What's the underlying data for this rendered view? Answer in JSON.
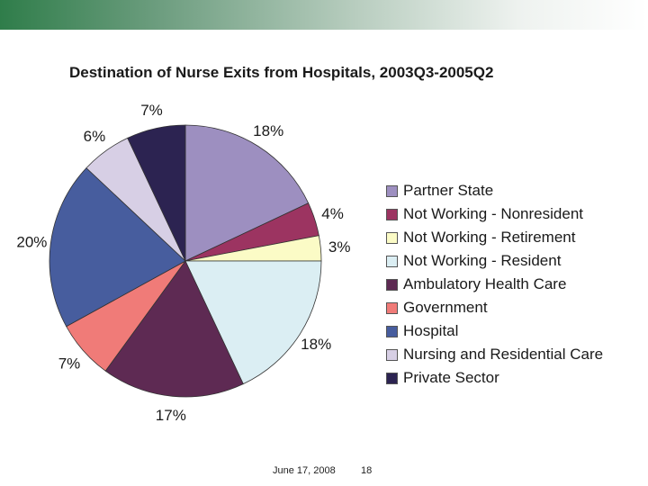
{
  "chart_data": {
    "type": "pie",
    "title": "Destination of Nurse Exits from Hospitals, 2003Q3-2005Q2",
    "categories": [
      "Partner State",
      "Not Working - Nonresident",
      "Not Working - Retirement",
      "Not Working - Resident",
      "Ambulatory Health Care",
      "Government",
      "Hospital",
      "Nursing and Residential Care",
      "Private Sector"
    ],
    "values": [
      18,
      4,
      3,
      18,
      17,
      7,
      20,
      6,
      7
    ],
    "labels": [
      "18%",
      "4%",
      "3%",
      "18%",
      "17%",
      "7%",
      "20%",
      "6%",
      "7%"
    ],
    "colors": [
      "#9d8fc0",
      "#9c3461",
      "#fbfbc6",
      "#dbeef3",
      "#5e2a53",
      "#f07b78",
      "#475d9e",
      "#d7cfe5",
      "#2c2351"
    ],
    "legend_position": "right"
  },
  "footer": {
    "date": "June 17, 2008",
    "page": "18"
  }
}
